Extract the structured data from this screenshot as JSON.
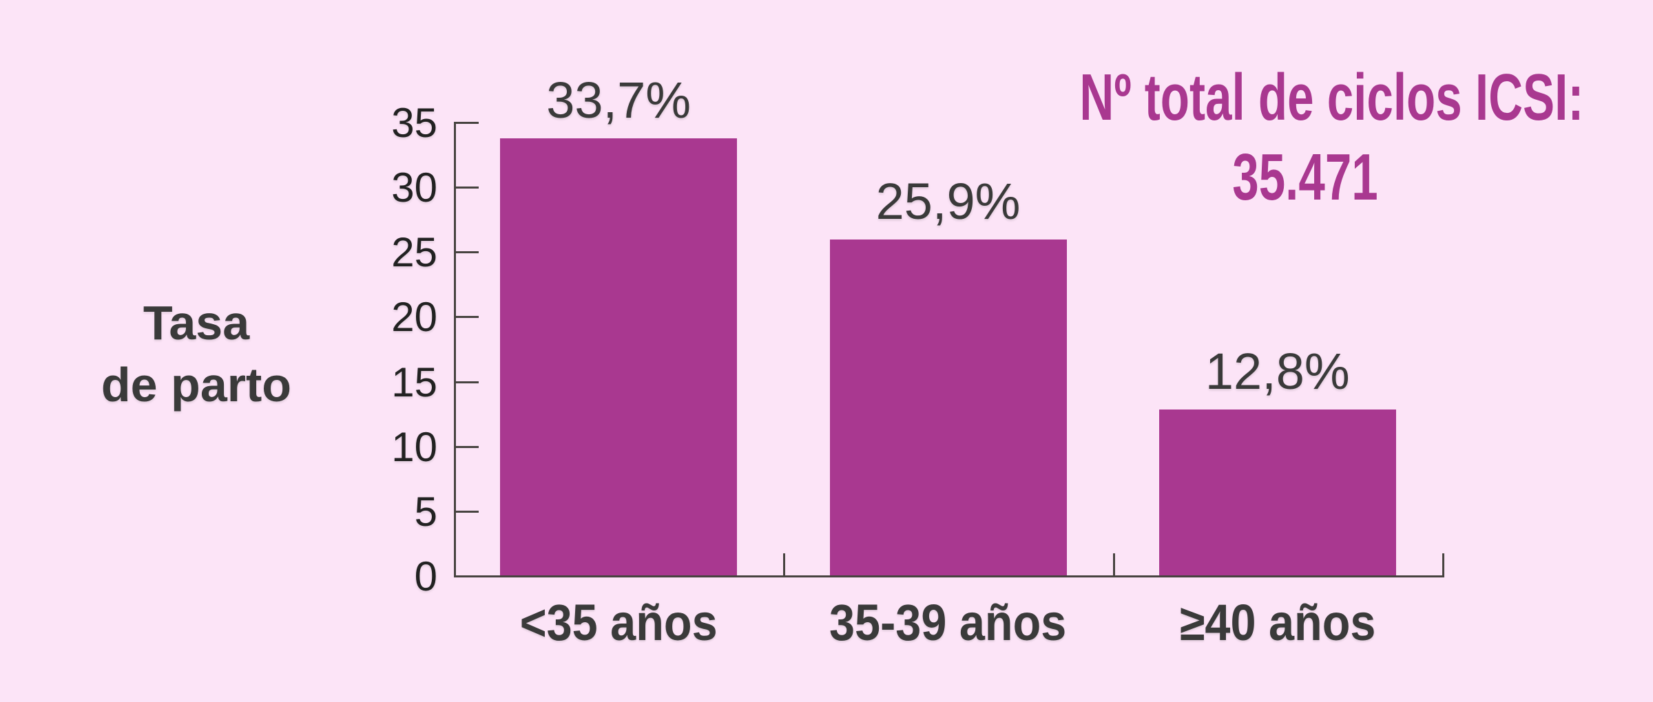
{
  "chart_data": {
    "type": "bar",
    "title": "",
    "categories": [
      "<35 años",
      "35-39 años",
      "≥40 años"
    ],
    "values": [
      33.7,
      25.9,
      12.8
    ],
    "value_labels": [
      "33,7%",
      "25,9%",
      "12,8%"
    ],
    "ylabel_lines": [
      "Tasa",
      "de parto"
    ],
    "xlabel": "",
    "ylim": [
      0,
      35
    ],
    "yticks": [
      0,
      5,
      10,
      15,
      20,
      25,
      30,
      35
    ],
    "grid": false,
    "legend": "none",
    "annotation": {
      "lines": [
        "Nº total de ciclos ICSI:",
        "35.471"
      ],
      "position": "top-right"
    },
    "colors": {
      "bar": "#a93890",
      "annotation_text": "#a93890",
      "label_text": "#3a3a3a",
      "tick_text": "#222222",
      "axis": "#474340",
      "background": "#fce4f7"
    }
  }
}
